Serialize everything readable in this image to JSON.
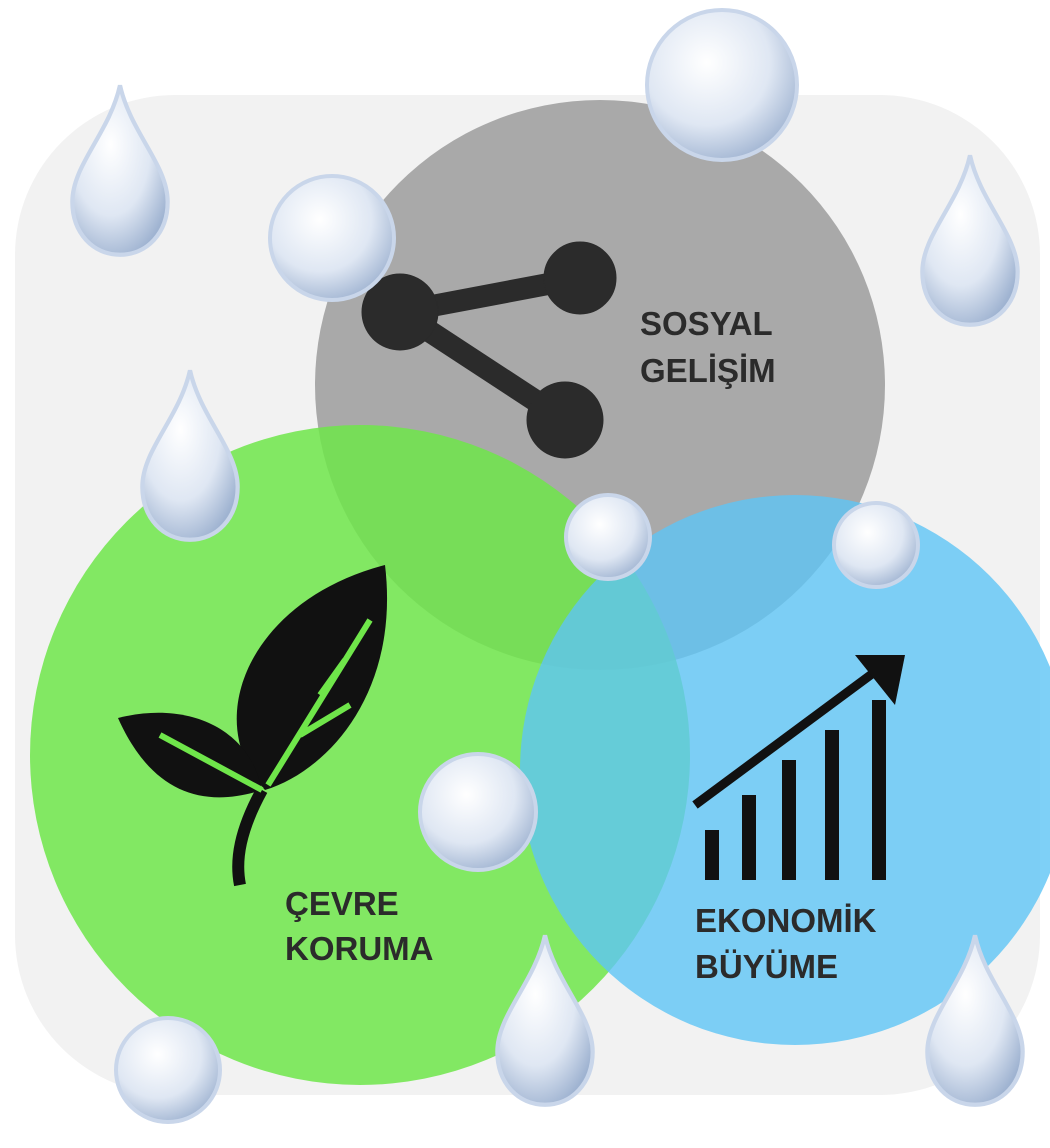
{
  "nodes": [
    {
      "lines": [
        "SOSYAL",
        "GELİŞİM"
      ]
    },
    {
      "lines": [
        "ÇEVRE",
        "KORUMA"
      ]
    },
    {
      "lines": [
        "EKONOMİK",
        "BÜYÜME"
      ]
    }
  ]
}
